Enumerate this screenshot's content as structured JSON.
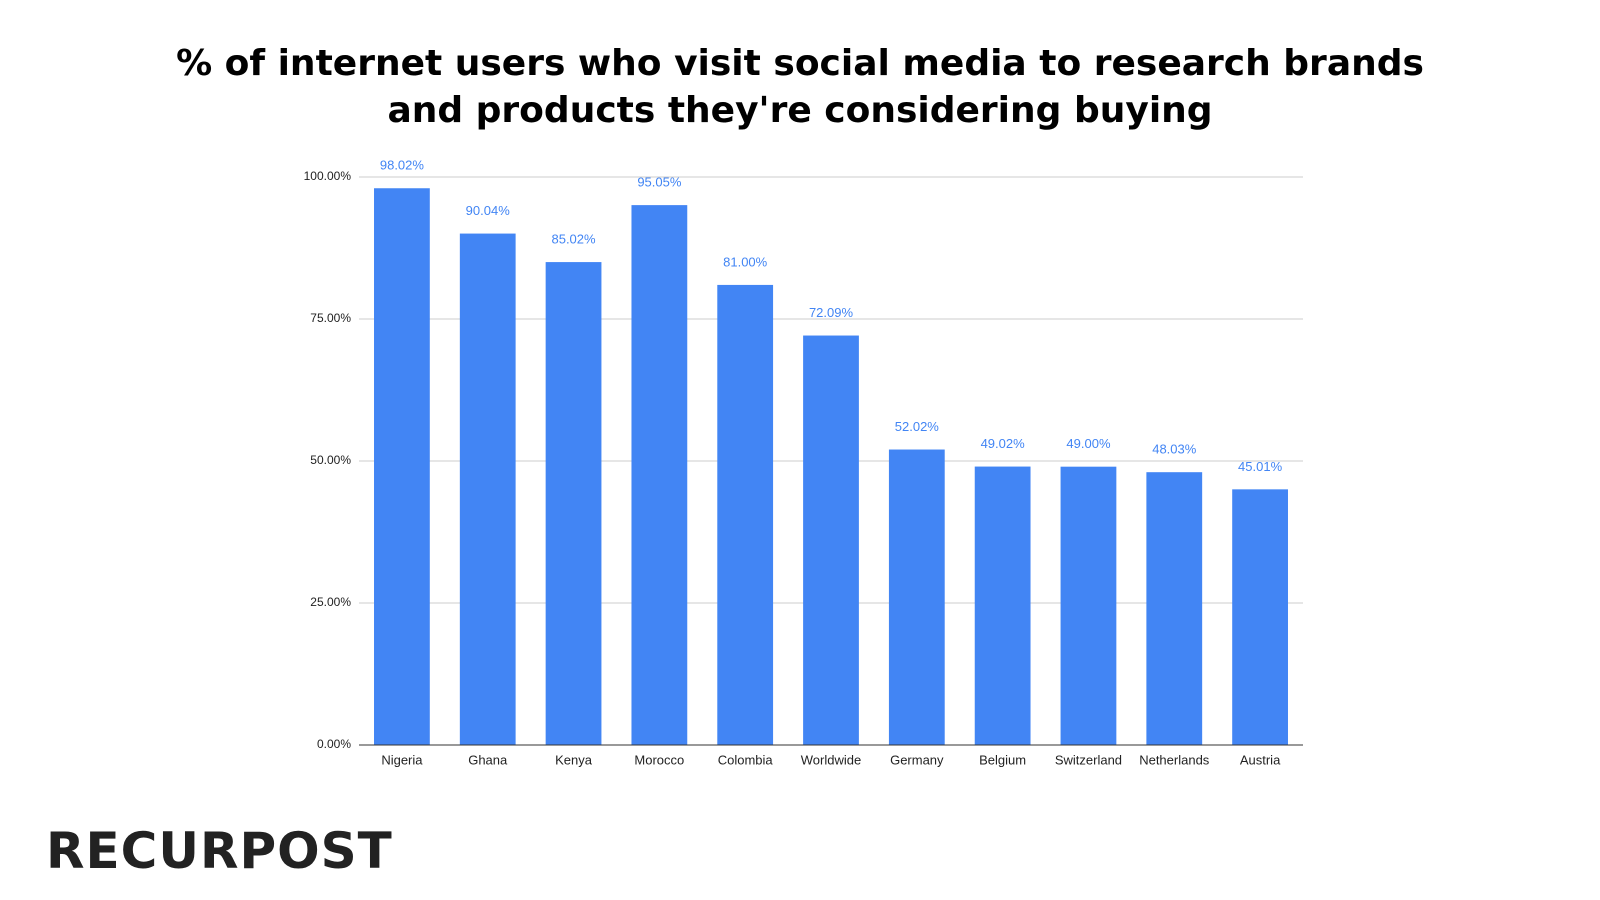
{
  "chart_data": {
    "type": "bar",
    "title": "% of internet users who visit social media to research brands and products they're considering buying",
    "categories": [
      "Nigeria",
      "Ghana",
      "Kenya",
      "Morocco",
      "Colombia",
      "Worldwide",
      "Germany",
      "Belgium",
      "Switzerland",
      "Netherlands",
      "Austria"
    ],
    "values": [
      98.02,
      90.04,
      85.02,
      95.05,
      81.0,
      72.09,
      52.02,
      49.02,
      49.0,
      48.03,
      45.01
    ],
    "value_labels": [
      "98.02%",
      "90.04%",
      "85.02%",
      "95.05%",
      "81.00%",
      "72.09%",
      "52.02%",
      "49.02%",
      "49.00%",
      "48.03%",
      "45.01%"
    ],
    "color": "#4285f4",
    "ylim": [
      0,
      100
    ],
    "yticks": [
      {
        "value": 0,
        "label": "0.00%"
      },
      {
        "value": 25,
        "label": "25.00%"
      },
      {
        "value": 50,
        "label": "50.00%"
      },
      {
        "value": 75,
        "label": "75.00%"
      },
      {
        "value": 100,
        "label": "100.00%"
      }
    ],
    "grid": true
  },
  "logo": "RECURPOST"
}
